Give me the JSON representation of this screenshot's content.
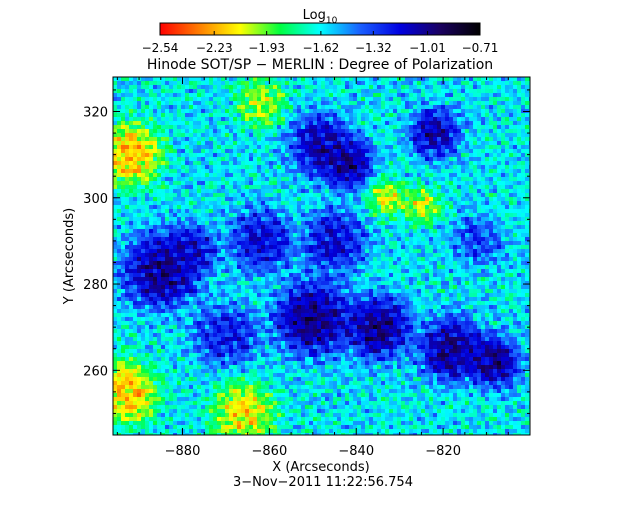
{
  "chart_data": {
    "type": "heatmap",
    "title": "Hinode SOT/SP − MERLIN : Degree of Polarization",
    "xlabel": "X (Arcseconds)",
    "ylabel": "Y (Arcseconds)",
    "xlim": [
      -896,
      -800
    ],
    "ylim": [
      245,
      328
    ],
    "x_ticks": [
      -880,
      -860,
      -840,
      -820
    ],
    "x_tick_labels": [
      "−880",
      "−860",
      "−840",
      "−820"
    ],
    "y_ticks": [
      260,
      280,
      300,
      320
    ],
    "y_tick_labels": [
      "260",
      "280",
      "300",
      "320"
    ],
    "colorbar": {
      "label_base": "Log",
      "label_sub": "10",
      "range": [
        -2.54,
        -0.71
      ],
      "ticks": [
        -2.54,
        -2.23,
        -1.93,
        -1.62,
        -1.32,
        -1.01,
        -0.71
      ],
      "tick_labels": [
        "−2.54",
        "−2.23",
        "−1.93",
        "−1.62",
        "−1.32",
        "−1.01",
        "−0.71"
      ],
      "colormap": [
        "#ff0000",
        "#ff8000",
        "#ffff00",
        "#00ff40",
        "#00ffff",
        "#1a60ff",
        "#0000e0",
        "#1a0060",
        "#000000"
      ]
    },
    "grid": false,
    "field": {
      "description_levels": "log10 degree of polarization, values between -2.54 and -0.71",
      "blobs": [
        {
          "x": -885,
          "y": 283,
          "v": -0.8,
          "r": 6
        },
        {
          "x": -878,
          "y": 288,
          "v": -1.0,
          "r": 4
        },
        {
          "x": -848,
          "y": 312,
          "v": -0.9,
          "r": 5
        },
        {
          "x": -842,
          "y": 308,
          "v": -0.85,
          "r": 4
        },
        {
          "x": -822,
          "y": 315,
          "v": -0.9,
          "r": 4
        },
        {
          "x": -862,
          "y": 290,
          "v": -1.0,
          "r": 5
        },
        {
          "x": -845,
          "y": 290,
          "v": -1.0,
          "r": 5
        },
        {
          "x": -850,
          "y": 272,
          "v": -0.8,
          "r": 6
        },
        {
          "x": -835,
          "y": 270,
          "v": -0.8,
          "r": 5
        },
        {
          "x": -818,
          "y": 265,
          "v": -0.8,
          "r": 5
        },
        {
          "x": -808,
          "y": 262,
          "v": -0.8,
          "r": 4
        },
        {
          "x": -870,
          "y": 268,
          "v": -1.1,
          "r": 5
        },
        {
          "x": -812,
          "y": 290,
          "v": -1.2,
          "r": 4
        },
        {
          "x": -892,
          "y": 310,
          "v": -2.4,
          "r": 5
        },
        {
          "x": -893,
          "y": 255,
          "v": -2.4,
          "r": 5
        },
        {
          "x": -866,
          "y": 250,
          "v": -2.3,
          "r": 5
        },
        {
          "x": -833,
          "y": 300,
          "v": -2.2,
          "r": 3
        },
        {
          "x": -825,
          "y": 298,
          "v": -2.2,
          "r": 3
        },
        {
          "x": -862,
          "y": 322,
          "v": -2.1,
          "r": 4
        }
      ],
      "background": -1.6
    }
  },
  "footer": {
    "timestamp": "3−Nov−2011 11:22:56.754"
  }
}
